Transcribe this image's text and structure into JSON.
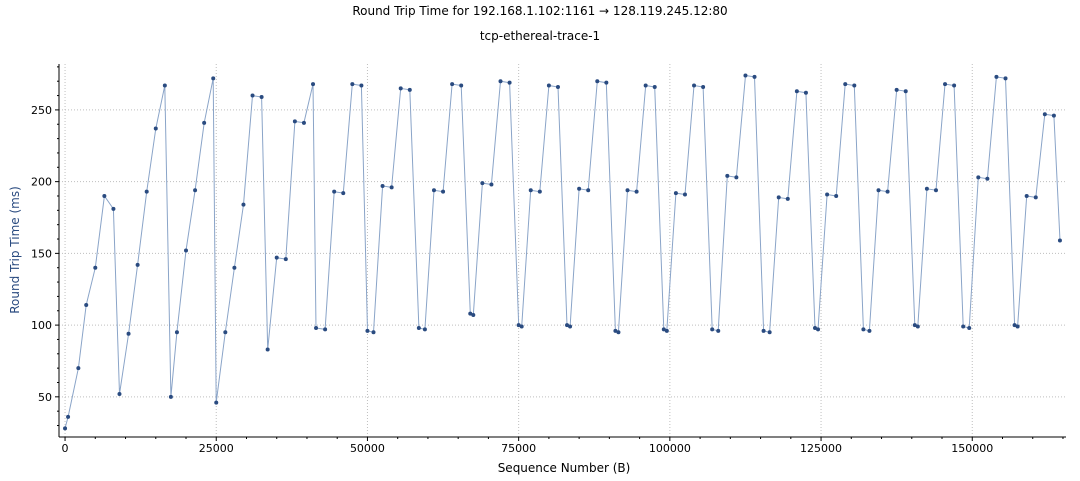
{
  "chart_data": {
    "type": "scatter",
    "title": "Round Trip Time for 192.168.1.102:1161 → 128.119.245.12:80",
    "subtitle": "tcp-ethereal-trace-1",
    "xlabel": "Sequence Number (B)",
    "ylabel": "Round Trip Time (ms)",
    "xlim": [
      -1000,
      165500
    ],
    "ylim": [
      22,
      282
    ],
    "xticks": [
      0,
      25000,
      50000,
      75000,
      100000,
      125000,
      150000
    ],
    "yticks": [
      50,
      100,
      150,
      200,
      250
    ],
    "grid": true,
    "series": [
      {
        "color": "#2a4b80",
        "x": [
          0,
          500,
          2200,
          3500,
          5000,
          6500,
          8000,
          9000,
          10500,
          12000,
          13500,
          15000,
          16500,
          17500,
          18500,
          20000,
          21500,
          23000,
          24500,
          25000,
          26500,
          28000,
          29500,
          31000,
          32500,
          33500,
          35000,
          36500,
          38000,
          39500,
          41000,
          41500,
          43000,
          44500,
          46000,
          47500,
          49000,
          50000,
          51000,
          52500,
          54000,
          55500,
          57000,
          58500,
          59500,
          61000,
          62500,
          64000,
          65500,
          67000,
          67500,
          69000,
          70500,
          72000,
          73500,
          75000,
          75500,
          77000,
          78500,
          80000,
          81500,
          83000,
          83500,
          85000,
          86500,
          88000,
          89500,
          91000,
          91500,
          93000,
          94500,
          96000,
          97500,
          99000,
          99500,
          101000,
          102500,
          104000,
          105500,
          107000,
          108000,
          109500,
          111000,
          112500,
          114000,
          115500,
          116500,
          118000,
          119500,
          121000,
          122500,
          124000,
          124500,
          126000,
          127500,
          129000,
          130500,
          132000,
          133000,
          134500,
          136000,
          137500,
          139000,
          140500,
          141000,
          142500,
          144000,
          145500,
          147000,
          148500,
          149500,
          151000,
          152500,
          154000,
          155500,
          157000,
          157500,
          159000,
          160500,
          162000,
          163500,
          164500
        ],
        "y": [
          28,
          36,
          70,
          114,
          140,
          190,
          181,
          52,
          94,
          142,
          193,
          237,
          267,
          50,
          95,
          152,
          194,
          241,
          272,
          46,
          95,
          140,
          184,
          260,
          259,
          83,
          147,
          146,
          242,
          241,
          268,
          98,
          97,
          193,
          192,
          268,
          267,
          96,
          95,
          197,
          196,
          265,
          264,
          98,
          97,
          194,
          193,
          268,
          267,
          108,
          107,
          199,
          198,
          270,
          269,
          100,
          99,
          194,
          193,
          267,
          266,
          100,
          99,
          195,
          194,
          270,
          269,
          96,
          95,
          194,
          193,
          267,
          266,
          97,
          96,
          192,
          191,
          267,
          266,
          97,
          96,
          204,
          203,
          274,
          273,
          96,
          95,
          189,
          188,
          263,
          262,
          98,
          97,
          191,
          190,
          268,
          267,
          97,
          96,
          194,
          193,
          264,
          263,
          100,
          99,
          195,
          194,
          268,
          267,
          99,
          98,
          203,
          202,
          273,
          272,
          100,
          99,
          190,
          189,
          247,
          246,
          159
        ]
      }
    ]
  }
}
